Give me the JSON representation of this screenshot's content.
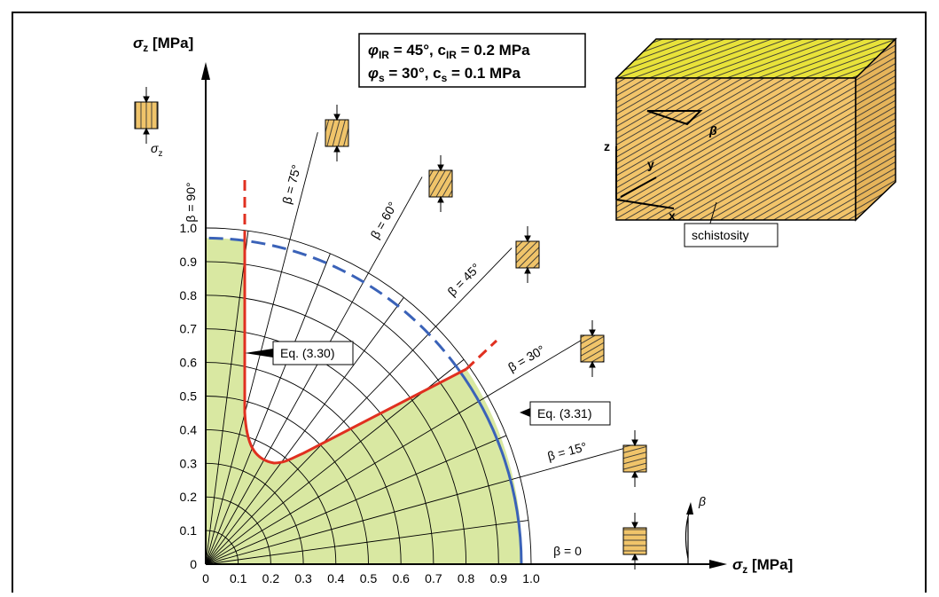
{
  "axes": {
    "symbol": "σ",
    "sub": "z",
    "unit": " [MPa]"
  },
  "x_ticks": [
    "0",
    "0.1",
    "0.2",
    "0.3",
    "0.4",
    "0.5",
    "0.6",
    "0.7",
    "0.8",
    "0.9",
    "1.0"
  ],
  "y_ticks": [
    "0",
    "0.1",
    "0.2",
    "0.3",
    "0.4",
    "0.5",
    "0.6",
    "0.7",
    "0.8",
    "0.9",
    "1.0"
  ],
  "beta_labels": [
    "β = 0",
    "β = 15°",
    "β = 30°",
    "β = 45°",
    "β = 60°",
    "β = 75°",
    "β = 90°"
  ],
  "equations": [
    "Eq. (3.30)",
    "Eq. (3.31)"
  ],
  "parameters": [
    [
      "φ",
      "IR",
      " = 45°,  c",
      "IR",
      " = 0.2 MPa"
    ],
    [
      "φ",
      "s",
      "  = 30°,  c",
      "s",
      " = 0.1 MPa"
    ]
  ],
  "block": {
    "z": "z",
    "y": "y",
    "x": "x",
    "beta": "β",
    "schistosity": "schistosity"
  },
  "sample": {
    "symbol": "σ",
    "sub": "z"
  },
  "rotation_label": "β"
}
